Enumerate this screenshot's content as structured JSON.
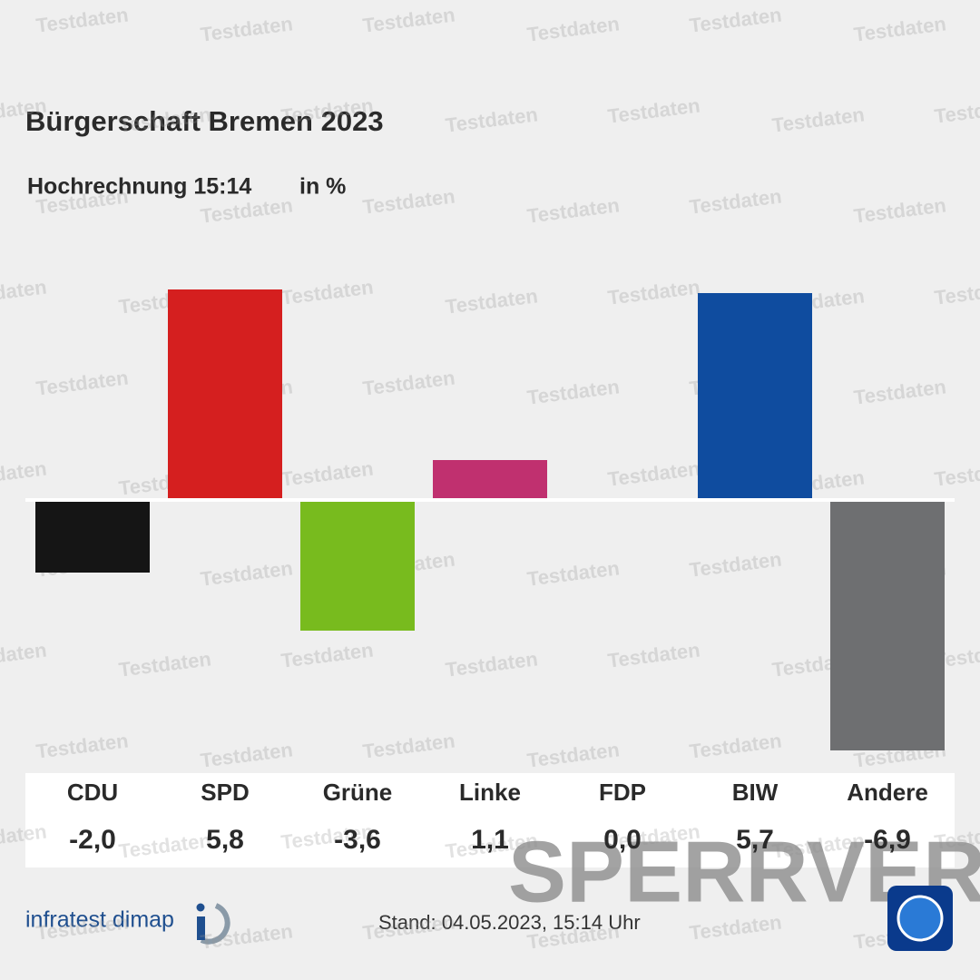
{
  "chart_data": {
    "type": "bar",
    "title": "Bürgerschaft Bremen 2023",
    "subtitle": "Hochrechnung 15:14",
    "unit": "in %",
    "categories": [
      "CDU",
      "SPD",
      "Grüne",
      "Linke",
      "FDP",
      "BIW",
      "Andere"
    ],
    "values": [
      -2.0,
      5.8,
      -3.6,
      1.1,
      0.0,
      5.7,
      -6.9
    ],
    "value_labels": [
      "-2,0",
      "5,8",
      "-3,6",
      "1,1",
      "0,0",
      "5,7",
      "-6,9"
    ],
    "colors": [
      "#151515",
      "#d51f1f",
      "#78bb1e",
      "#c0306f",
      "#f5d300",
      "#0f4c9f",
      "#6e6f71"
    ],
    "ylim": [
      -7,
      7
    ]
  },
  "footer": {
    "source": "infratest dimap",
    "stand": "Stand:  04.05.2023, 15:14 Uhr"
  },
  "watermark": "Testdaten",
  "embargo": "SPERRVER"
}
